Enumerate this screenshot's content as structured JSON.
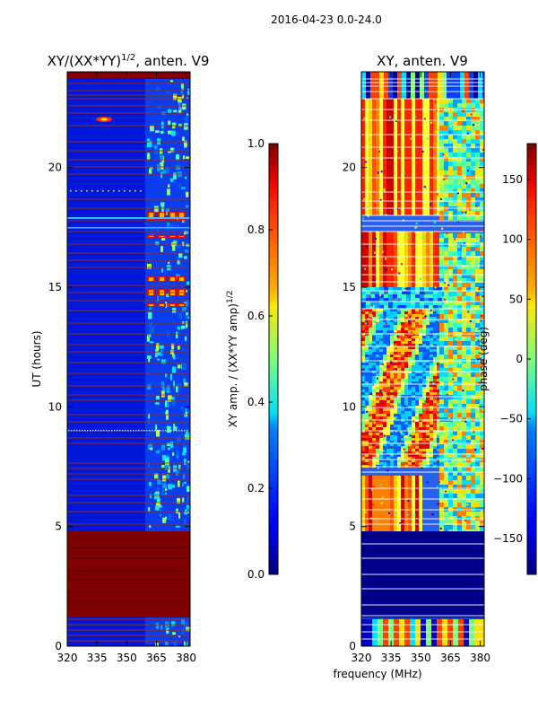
{
  "suptitle": "2016-04-23 0.0-24.0",
  "shared_xlabel": "frequency (MHz)",
  "chart_data": [
    {
      "type": "heatmap",
      "title_prefix": "XY/(XX*YY)",
      "title_superscript": "1/2",
      "title_suffix": ", anten. V9",
      "xlabel": "",
      "ylabel": "UT (hours)",
      "xlim": [
        320,
        382
      ],
      "ylim": [
        0,
        24
      ],
      "xticks": [
        320,
        335,
        350,
        365,
        380
      ],
      "yticks": [
        0,
        5,
        10,
        15,
        20
      ],
      "colorbar": {
        "label_prefix": "XY amp. / (XX*YY amp)",
        "label_superscript": "1/2",
        "range": [
          0.0,
          1.0
        ],
        "ticks": [
          "0.0",
          "0.2",
          "0.4",
          "0.6",
          "0.8",
          "1.0"
        ],
        "colormap": "jet"
      }
    },
    {
      "type": "heatmap",
      "title": "XY, anten. V9",
      "xlabel": "frequency (MHz)",
      "ylabel": "",
      "xlim": [
        320,
        382
      ],
      "ylim": [
        0,
        24
      ],
      "xticks": [
        320,
        335,
        350,
        365,
        380
      ],
      "yticks": [
        0,
        5,
        10,
        15,
        20
      ],
      "colorbar": {
        "label": "phase (deg)",
        "range": [
          -180,
          180
        ],
        "ticks": [
          "−150",
          "−100",
          "−50",
          "0",
          "50",
          "100",
          "150"
        ],
        "tick_values": [
          -150,
          -100,
          -50,
          0,
          50,
          100,
          150
        ],
        "colormap": "jet"
      }
    }
  ]
}
